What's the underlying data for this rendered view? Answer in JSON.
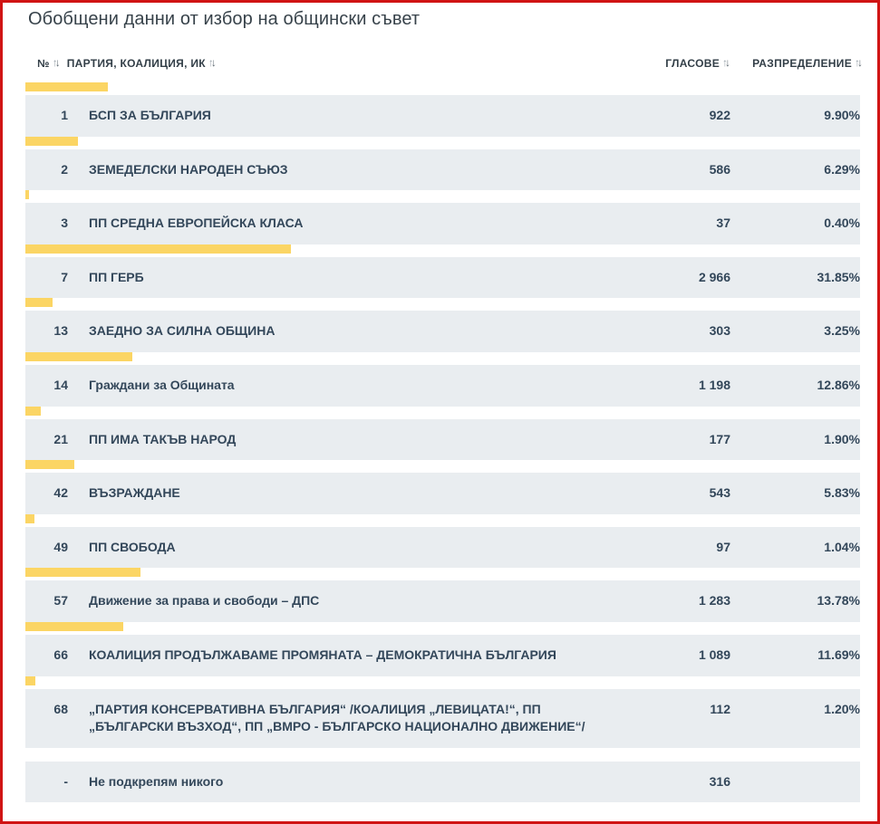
{
  "page": {
    "title": "Обобщени данни от избор на общински съвет"
  },
  "colors": {
    "frame_border": "#D01414",
    "bar_fill": "#FBD564",
    "row_background": "#E9EDF0",
    "row_text": "#33475A",
    "header_text": "#323E47"
  },
  "icons": {
    "sort_up": "↑",
    "sort_down": "↓"
  },
  "table": {
    "headers": {
      "number": "№",
      "party": "ПАРТИЯ, КОАЛИЦИЯ, ИК",
      "votes": "ГЛАСОВЕ",
      "distribution": "РАЗПРЕДЕЛЕНИЕ"
    },
    "rows": [
      {
        "number": "1",
        "party": "БСП ЗА БЪЛГАРИЯ",
        "votes": "922",
        "distribution": "9.90%",
        "pct": 9.9
      },
      {
        "number": "2",
        "party": "ЗЕМЕДЕЛСКИ НАРОДЕН СЪЮЗ",
        "votes": "586",
        "distribution": "6.29%",
        "pct": 6.29
      },
      {
        "number": "3",
        "party": "ПП СРЕДНА ЕВРОПЕЙСКА КЛАСА",
        "votes": "37",
        "distribution": "0.40%",
        "pct": 0.4
      },
      {
        "number": "7",
        "party": "ПП ГЕРБ",
        "votes": "2 966",
        "distribution": "31.85%",
        "pct": 31.85
      },
      {
        "number": "13",
        "party": "ЗАЕДНО ЗА СИЛНА ОБЩИНА",
        "votes": "303",
        "distribution": "3.25%",
        "pct": 3.25
      },
      {
        "number": "14",
        "party": "Граждани за Общината",
        "votes": "1 198",
        "distribution": "12.86%",
        "pct": 12.86
      },
      {
        "number": "21",
        "party": "ПП ИМА ТАКЪВ НАРОД",
        "votes": "177",
        "distribution": "1.90%",
        "pct": 1.9
      },
      {
        "number": "42",
        "party": "ВЪЗРАЖДАНЕ",
        "votes": "543",
        "distribution": "5.83%",
        "pct": 5.83
      },
      {
        "number": "49",
        "party": "ПП СВОБОДА",
        "votes": "97",
        "distribution": "1.04%",
        "pct": 1.04
      },
      {
        "number": "57",
        "party": "Движение за права и свободи – ДПС",
        "votes": "1 283",
        "distribution": "13.78%",
        "pct": 13.78
      },
      {
        "number": "66",
        "party": "КОАЛИЦИЯ ПРОДЪЛЖАВАМЕ ПРОМЯНАТА – ДЕМОКРАТИЧНА БЪЛГАРИЯ",
        "votes": "1 089",
        "distribution": "11.69%",
        "pct": 11.69
      },
      {
        "number": "68",
        "party": "„ПАРТИЯ КОНСЕРВАТИВНА БЪЛГАРИЯ“ /КОАЛИЦИЯ „ЛЕВИЦАТА!“, ПП „БЪЛГАРСКИ ВЪЗХОД“, ПП „ВМРО - БЪЛГАРСКО НАЦИОНАЛНО ДВИЖЕНИЕ“/",
        "votes": "112",
        "distribution": "1.20%",
        "pct": 1.2
      },
      {
        "number": "-",
        "party": "Не подкрепям никого",
        "votes": "316",
        "distribution": "",
        "pct": null
      }
    ]
  }
}
